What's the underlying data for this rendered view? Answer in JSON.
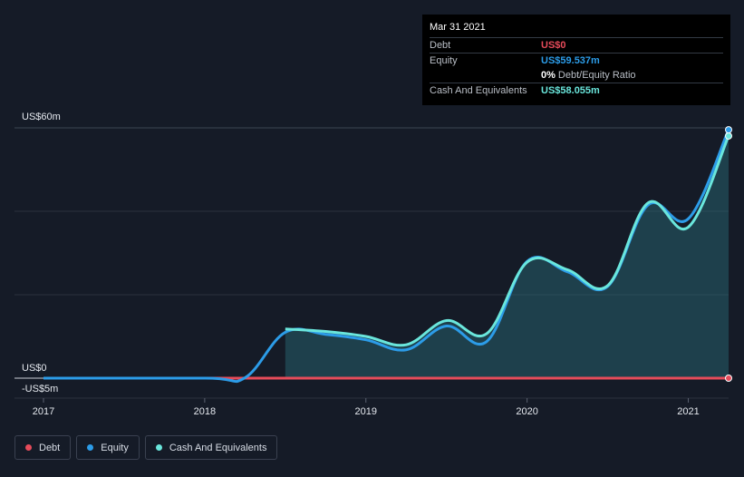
{
  "tooltip": {
    "date": "Mar 31 2021",
    "rows": [
      {
        "label": "Debt",
        "value": "US$0",
        "color": "#e64b5a"
      },
      {
        "label": "Equity",
        "value": "US$59.537m",
        "color": "#2c9ce8"
      },
      {
        "ratio_pct": "0%",
        "ratio_label": "Debt/Equity Ratio"
      },
      {
        "label": "Cash And Equivalents",
        "value": "US$58.055m",
        "color": "#6ae6dc"
      }
    ]
  },
  "legend": [
    {
      "label": "Debt",
      "color": "#e64b5a"
    },
    {
      "label": "Equity",
      "color": "#2c9ce8"
    },
    {
      "label": "Cash And Equivalents",
      "color": "#6ae6dc"
    }
  ],
  "chart_data": {
    "type": "line",
    "ylabels": {
      "top": "US$60m",
      "zero": "US$0",
      "bottom": "-US$5m"
    },
    "ylim": [
      -5,
      60
    ],
    "xlim": [
      2017.0,
      2021.25
    ],
    "xticks": [
      {
        "v": 2017,
        "label": "2017"
      },
      {
        "v": 2018,
        "label": "2018"
      },
      {
        "v": 2019,
        "label": "2019"
      },
      {
        "v": 2020,
        "label": "2020"
      },
      {
        "v": 2021,
        "label": "2021"
      }
    ],
    "grid": true,
    "series": [
      {
        "name": "Debt",
        "color": "#e64b5a",
        "x": [
          2017.0,
          2018.25,
          2018.5,
          2019.0,
          2019.5,
          2020.0,
          2020.5,
          2021.0,
          2021.25
        ],
        "y": [
          0,
          0,
          0,
          0,
          0,
          0,
          0,
          0,
          0
        ]
      },
      {
        "name": "Equity",
        "color": "#2c9ce8",
        "x": [
          2017.0,
          2018.0,
          2018.25,
          2018.5,
          2018.75,
          2019.0,
          2019.25,
          2019.5,
          2019.75,
          2020.0,
          2020.25,
          2020.5,
          2020.75,
          2021.0,
          2021.25
        ],
        "y": [
          0,
          0,
          0.1,
          11,
          10.5,
          9.2,
          6.8,
          12.5,
          8.8,
          28,
          25.5,
          22,
          41.5,
          38.2,
          59.537
        ]
      },
      {
        "name": "Cash And Equivalents",
        "color": "#6ae6dc",
        "x": [
          2018.5,
          2018.75,
          2019.0,
          2019.25,
          2019.5,
          2019.75,
          2020.0,
          2020.25,
          2020.5,
          2020.75,
          2021.0,
          2021.25
        ],
        "y": [
          11.8,
          11.2,
          10.0,
          8.0,
          13.8,
          10.7,
          27.8,
          26.0,
          22.2,
          42.0,
          36.2,
          58.055
        ]
      }
    ]
  }
}
